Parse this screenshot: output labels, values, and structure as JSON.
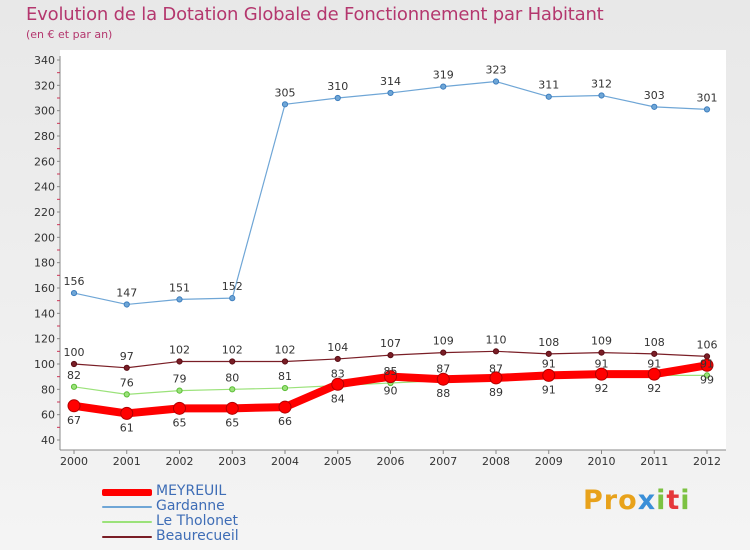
{
  "title": "Evolution de la Dotation Globale de Fonctionnement par Habitant",
  "subtitle": "(en € et par an)",
  "logo": {
    "text": "Proxiti",
    "brand_colors": [
      "#e8a21b",
      "#3a8fd8",
      "#7cc242",
      "#e5383b"
    ]
  },
  "chart_data": {
    "type": "line",
    "title": "Evolution de la Dotation Globale de Fonctionnement par Habitant",
    "ylabel": "(en € et par an)",
    "xlabel": "",
    "ylim": [
      40,
      340
    ],
    "yticks": [
      40,
      60,
      80,
      100,
      120,
      140,
      160,
      180,
      200,
      220,
      240,
      260,
      280,
      300,
      320,
      340
    ],
    "categories": [
      "2000",
      "2001",
      "2002",
      "2003",
      "2004",
      "2005",
      "2006",
      "2007",
      "2008",
      "2009",
      "2010",
      "2011",
      "2012"
    ],
    "grid": false,
    "legend_position": "bottom-left",
    "series": [
      {
        "name": "MEYREUIL",
        "color": "#ff0000",
        "values": [
          67,
          61,
          65,
          65,
          66,
          84,
          90,
          88,
          89,
          91,
          92,
          92,
          99
        ]
      },
      {
        "name": "Gardanne",
        "color": "#6fa6d6",
        "values": [
          156,
          147,
          151,
          152,
          305,
          310,
          314,
          319,
          323,
          311,
          312,
          303,
          301
        ]
      },
      {
        "name": "Le Tholonet",
        "color": "#9be27a",
        "values": [
          82,
          76,
          79,
          80,
          81,
          83,
          85,
          87,
          87,
          91,
          91,
          91,
          91
        ]
      },
      {
        "name": "Beaurecueil",
        "color": "#7a1e26",
        "values": [
          100,
          97,
          102,
          102,
          102,
          104,
          107,
          109,
          110,
          108,
          109,
          108,
          106
        ]
      }
    ]
  }
}
